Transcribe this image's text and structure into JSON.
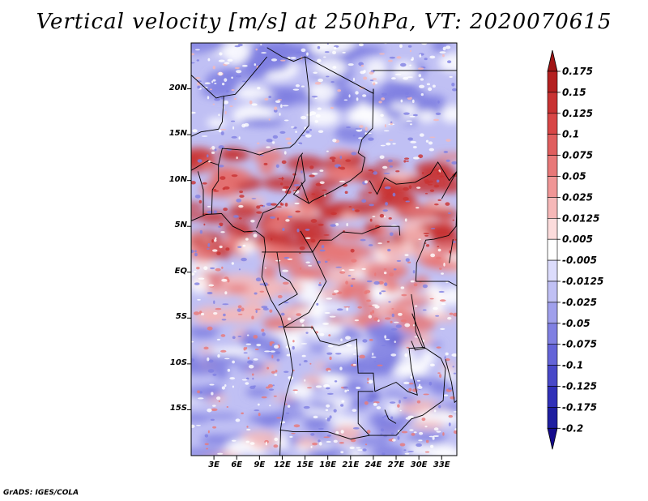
{
  "title": "Vertical velocity [m/s] at 250hPa, VT: 2020070615",
  "footer": "GrADS: IGES/COLA",
  "lat_labels": [
    "20N",
    "15N",
    "10N",
    "5N",
    "EQ",
    "5S",
    "10S",
    "15S"
  ],
  "lon_labels": [
    "3E",
    "6E",
    "9E",
    "12E",
    "15E",
    "18E",
    "21E",
    "24E",
    "27E",
    "30E",
    "33E"
  ],
  "colorbar": {
    "levels": [
      "0.175",
      "0.15",
      "0.125",
      "0.1",
      "0.075",
      "0.05",
      "0.025",
      "0.0125",
      "0.005",
      "-0.005",
      "-0.0125",
      "-0.025",
      "-0.05",
      "-0.075",
      "-0.1",
      "-0.125",
      "-0.175",
      "-0.2"
    ],
    "colors": [
      "#a01414",
      "#b42020",
      "#c83232",
      "#d84646",
      "#e05e5e",
      "#e87878",
      "#f09696",
      "#f6b8b8",
      "#fcdcdc",
      "#ffffff",
      "#dcdcfc",
      "#c0c0f4",
      "#a0a0ec",
      "#8080e2",
      "#6464d8",
      "#4848c8",
      "#3030b8",
      "#1e1ea0",
      "#140a8c"
    ]
  },
  "map": {
    "lon_range": [
      0,
      35
    ],
    "lat_range": [
      -20,
      25
    ],
    "field_colors": {
      "strong_up": "#c83232",
      "up": "#e87878",
      "weak_up": "#f6b8b8",
      "neutral": "#ffffff",
      "weak_down": "#c0c0f4",
      "down": "#8080e2",
      "strong_down": "#4848c8"
    }
  }
}
